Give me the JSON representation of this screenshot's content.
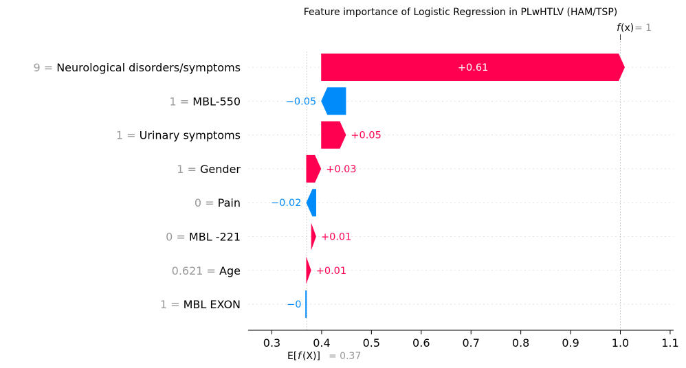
{
  "chart_data": {
    "type": "waterfall",
    "title": "Feature importance of Logistic Regression in PLwHTLV (HAM/TSP)",
    "base_value": 0.37,
    "base_label": "= 0.37",
    "final_value": 1,
    "final_label": "= 1",
    "xlim": [
      0.25,
      1.11
    ],
    "xticks": [
      0.3,
      0.4,
      0.5,
      0.6,
      0.7,
      0.8,
      0.9,
      1.0,
      1.1
    ],
    "xtick_labels": [
      "0.3",
      "0.4",
      "0.5",
      "0.6",
      "0.7",
      "0.8",
      "0.9",
      "1.0",
      "1.1"
    ],
    "features": [
      {
        "value": "9",
        "name": "Neurological disorders/symptoms",
        "contribution": 0.61,
        "label": "+0.61"
      },
      {
        "value": "1",
        "name": "MBL-550",
        "contribution": -0.05,
        "label": "−0.05"
      },
      {
        "value": "1",
        "name": "Urinary symptoms",
        "contribution": 0.05,
        "label": "+0.05"
      },
      {
        "value": "1",
        "name": "Gender",
        "contribution": 0.03,
        "label": "+0.03"
      },
      {
        "value": "0",
        "name": "Pain",
        "contribution": -0.02,
        "label": "−0.02"
      },
      {
        "value": "0",
        "name": "MBL -221",
        "contribution": 0.01,
        "label": "+0.01"
      },
      {
        "value": "0.621",
        "name": "Age",
        "contribution": 0.01,
        "label": "+0.01"
      },
      {
        "value": "1",
        "name": "MBL EXON",
        "contribution": -0.001,
        "label": "−0"
      }
    ],
    "colors": {
      "positive": "#ff0051",
      "negative": "#008bfb",
      "label_grey": "#999999"
    }
  }
}
